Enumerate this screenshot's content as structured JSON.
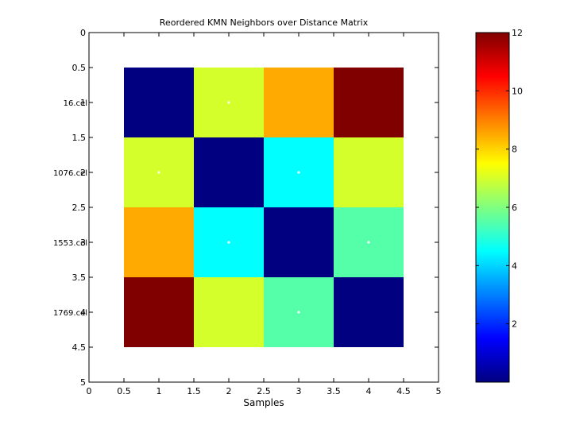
{
  "chart_data": {
    "type": "heatmap",
    "title": "Reordered KMN Neighbors over Distance Matrix",
    "xlabel": "Samples",
    "ylabel": "",
    "xlim": [
      0,
      5
    ],
    "ylim": [
      0,
      5
    ],
    "x_ticks": [
      "0",
      "0.5",
      "1",
      "1.5",
      "2",
      "2.5",
      "3",
      "3.5",
      "4",
      "4.5",
      "5"
    ],
    "y_ticks": [
      "0",
      "0.5",
      "1",
      "1.5",
      "2",
      "2.5",
      "3",
      "3.5",
      "4",
      "4.5",
      "5"
    ],
    "row_labels": [
      "16.cel",
      "1076.cel",
      "1553.cel",
      "1769.cel"
    ],
    "matrix": [
      [
        0,
        7,
        8.5,
        12
      ],
      [
        7,
        0,
        4.5,
        7
      ],
      [
        8.5,
        4.5,
        0,
        5.5
      ],
      [
        12,
        7,
        5.5,
        0
      ]
    ],
    "neighbor_markers": [
      {
        "row": 1,
        "col": 2
      },
      {
        "row": 2,
        "col": 1
      },
      {
        "row": 2,
        "col": 3
      },
      {
        "row": 3,
        "col": 2
      },
      {
        "row": 3,
        "col": 4
      },
      {
        "row": 4,
        "col": 3
      }
    ],
    "colorbar": {
      "colormap": "jet",
      "min": 0,
      "max": 12,
      "ticks": [
        "2",
        "4",
        "6",
        "8",
        "10",
        "12"
      ]
    },
    "grid": false,
    "legend": "none"
  }
}
